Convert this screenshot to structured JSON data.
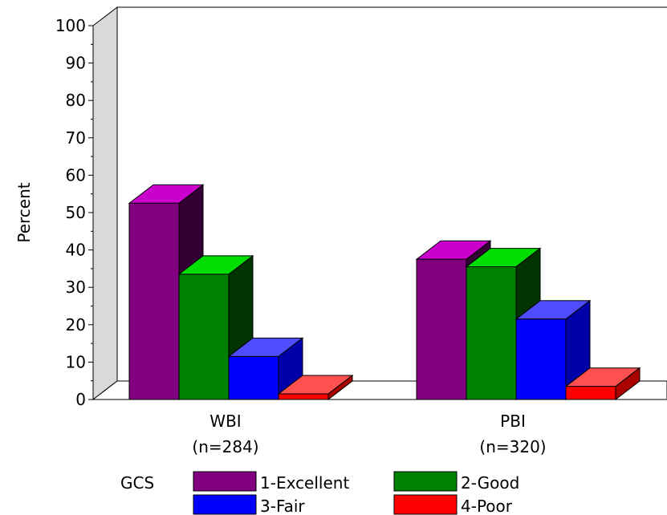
{
  "chart_data": {
    "type": "bar",
    "ylabel": "Percent",
    "ylim": [
      0,
      100
    ],
    "yticks": [
      0,
      10,
      20,
      30,
      40,
      50,
      60,
      70,
      80,
      90,
      100
    ],
    "categories": [
      {
        "name": "WBI",
        "sub": "(n=284)"
      },
      {
        "name": "PBI",
        "sub": "(n=320)"
      }
    ],
    "legend_title": "GCS",
    "series": [
      {
        "name": "1-Excellent",
        "values": [
          52.5,
          37.5
        ],
        "color": "#800080",
        "top": "#cc00cc",
        "side": "#330033"
      },
      {
        "name": "2-Good",
        "values": [
          33.5,
          35.5
        ],
        "color": "#008000",
        "top": "#00dd00",
        "side": "#003300"
      },
      {
        "name": "3-Fair",
        "values": [
          11.5,
          21.5
        ],
        "color": "#0000ff",
        "top": "#4d4dff",
        "side": "#0000aa"
      },
      {
        "name": "4-Poor",
        "values": [
          1.5,
          3.5
        ],
        "color": "#ff0000",
        "top": "#ff5050",
        "side": "#aa0000"
      }
    ]
  }
}
